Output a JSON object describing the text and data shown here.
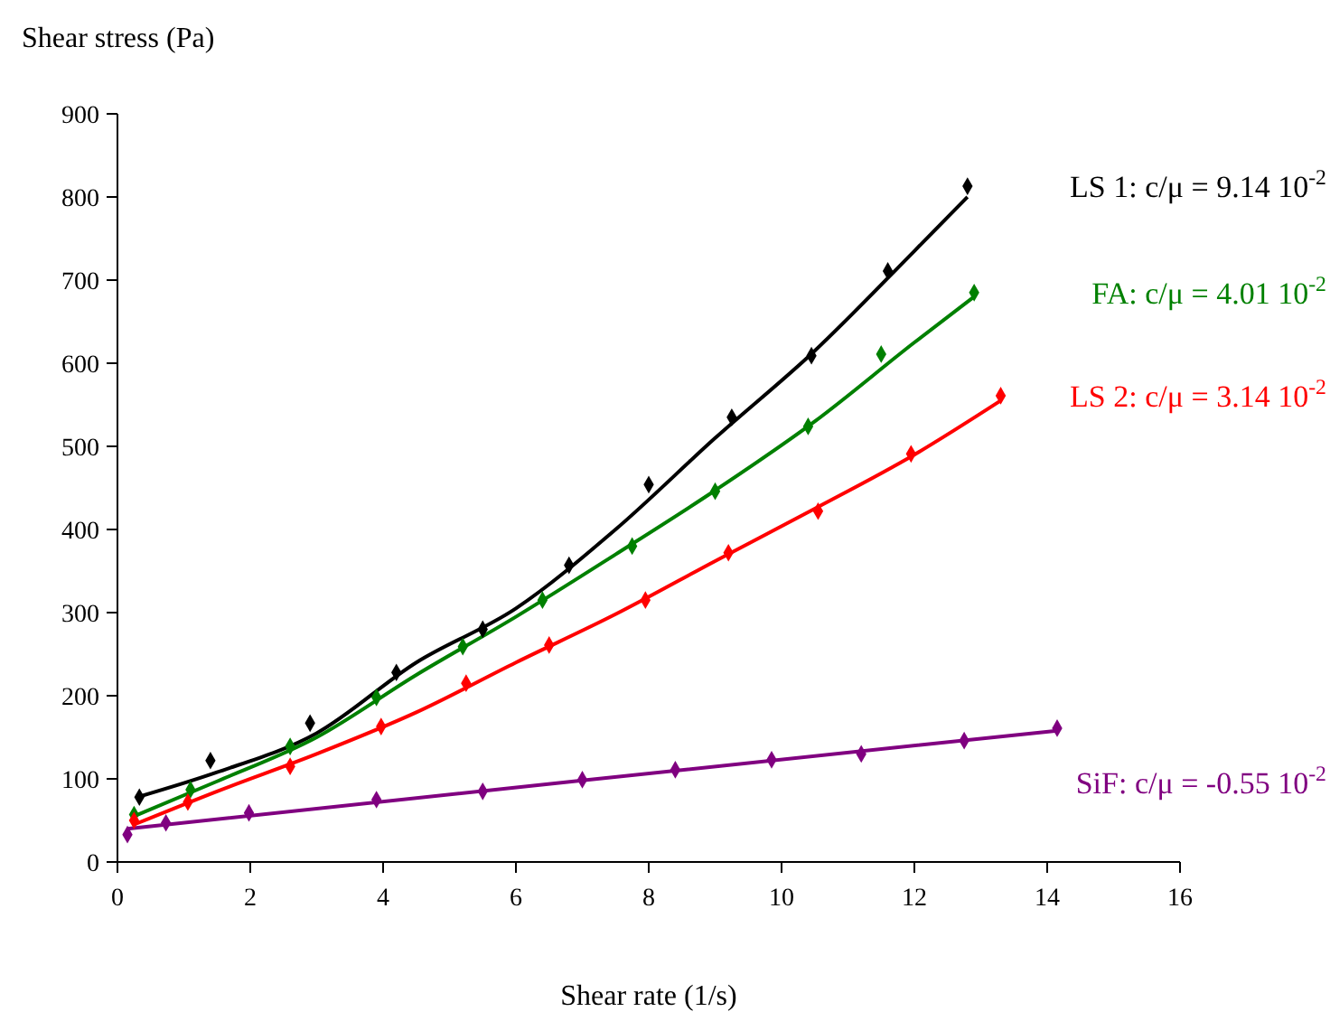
{
  "chart_data": {
    "type": "scatter",
    "xlabel": "Shear rate (1/s)",
    "ylabel": "Shear stress (Pa)",
    "xlim": [
      0,
      16
    ],
    "xticks": [
      0,
      2,
      4,
      6,
      8,
      10,
      12,
      14,
      16
    ],
    "ylim": [
      0,
      900
    ],
    "yticks": [
      0,
      100,
      200,
      300,
      400,
      500,
      600,
      700,
      800,
      900
    ],
    "grid": false,
    "marker": "diamond",
    "series": [
      {
        "type": "line",
        "marker": "none",
        "color": "#000000",
        "x": [
          0.3,
          1.5,
          3,
          4.5,
          6,
          7.5,
          9,
          10.5,
          12,
          12.8
        ],
        "values": [
          78,
          108,
          155,
          240,
          305,
          400,
          510,
          615,
          735,
          800
        ]
      },
      {
        "type": "line",
        "marker": "none",
        "color": "#008000",
        "x": [
          0.25,
          1.5,
          3,
          4.5,
          6,
          7.5,
          9,
          10.5,
          12,
          12.9
        ],
        "values": [
          55,
          97,
          150,
          225,
          295,
          370,
          447,
          530,
          625,
          680
        ]
      },
      {
        "type": "line",
        "marker": "none",
        "color": "#ff0000",
        "x": [
          0.25,
          1.5,
          3,
          4.5,
          6,
          7.5,
          9,
          10.5,
          12,
          13.3
        ],
        "values": [
          45,
          85,
          130,
          180,
          240,
          298,
          362,
          425,
          490,
          555
        ]
      },
      {
        "type": "line",
        "marker": "none",
        "color": "#800080",
        "x": [
          0.15,
          7,
          14.15
        ],
        "values": [
          40,
          98,
          158
        ]
      },
      {
        "name": "LS 1: c/μ = 9.14 10$^{-2}$",
        "color": "#000000",
        "x": [
          0.33,
          1.4,
          2.9,
          4.2,
          5.5,
          6.8,
          8.0,
          9.25,
          10.45,
          11.6,
          12.8
        ],
        "values": [
          78,
          122,
          167,
          228,
          280,
          357,
          454,
          535,
          609,
          711,
          813
        ]
      },
      {
        "name": "FA: c/μ = 4.01 10$^{-2}$",
        "color": "#008000",
        "x": [
          0.25,
          1.1,
          2.6,
          3.9,
          5.2,
          6.4,
          7.75,
          9.0,
          10.4,
          11.5,
          12.9
        ],
        "values": [
          57,
          87,
          139,
          198,
          259,
          315,
          380,
          446,
          524,
          611,
          685
        ]
      },
      {
        "name": "LS 2: c/μ = 3.14 10$^{-2}$",
        "color": "#ff0000",
        "x": [
          0.25,
          1.06,
          2.6,
          3.97,
          5.25,
          6.5,
          7.95,
          9.2,
          10.55,
          11.95,
          13.3
        ],
        "values": [
          50,
          72,
          115,
          163,
          215,
          261,
          315,
          372,
          422,
          491,
          561
        ]
      },
      {
        "name": "SiF: c/μ = -0.55 10$^{-2}$",
        "color": "#800080",
        "x": [
          0.15,
          0.73,
          1.98,
          3.9,
          5.5,
          7.0,
          8.4,
          9.85,
          11.2,
          12.75,
          14.15
        ],
        "values": [
          33,
          47,
          59,
          75,
          85,
          99,
          111,
          123,
          130,
          146,
          161
        ]
      }
    ]
  }
}
